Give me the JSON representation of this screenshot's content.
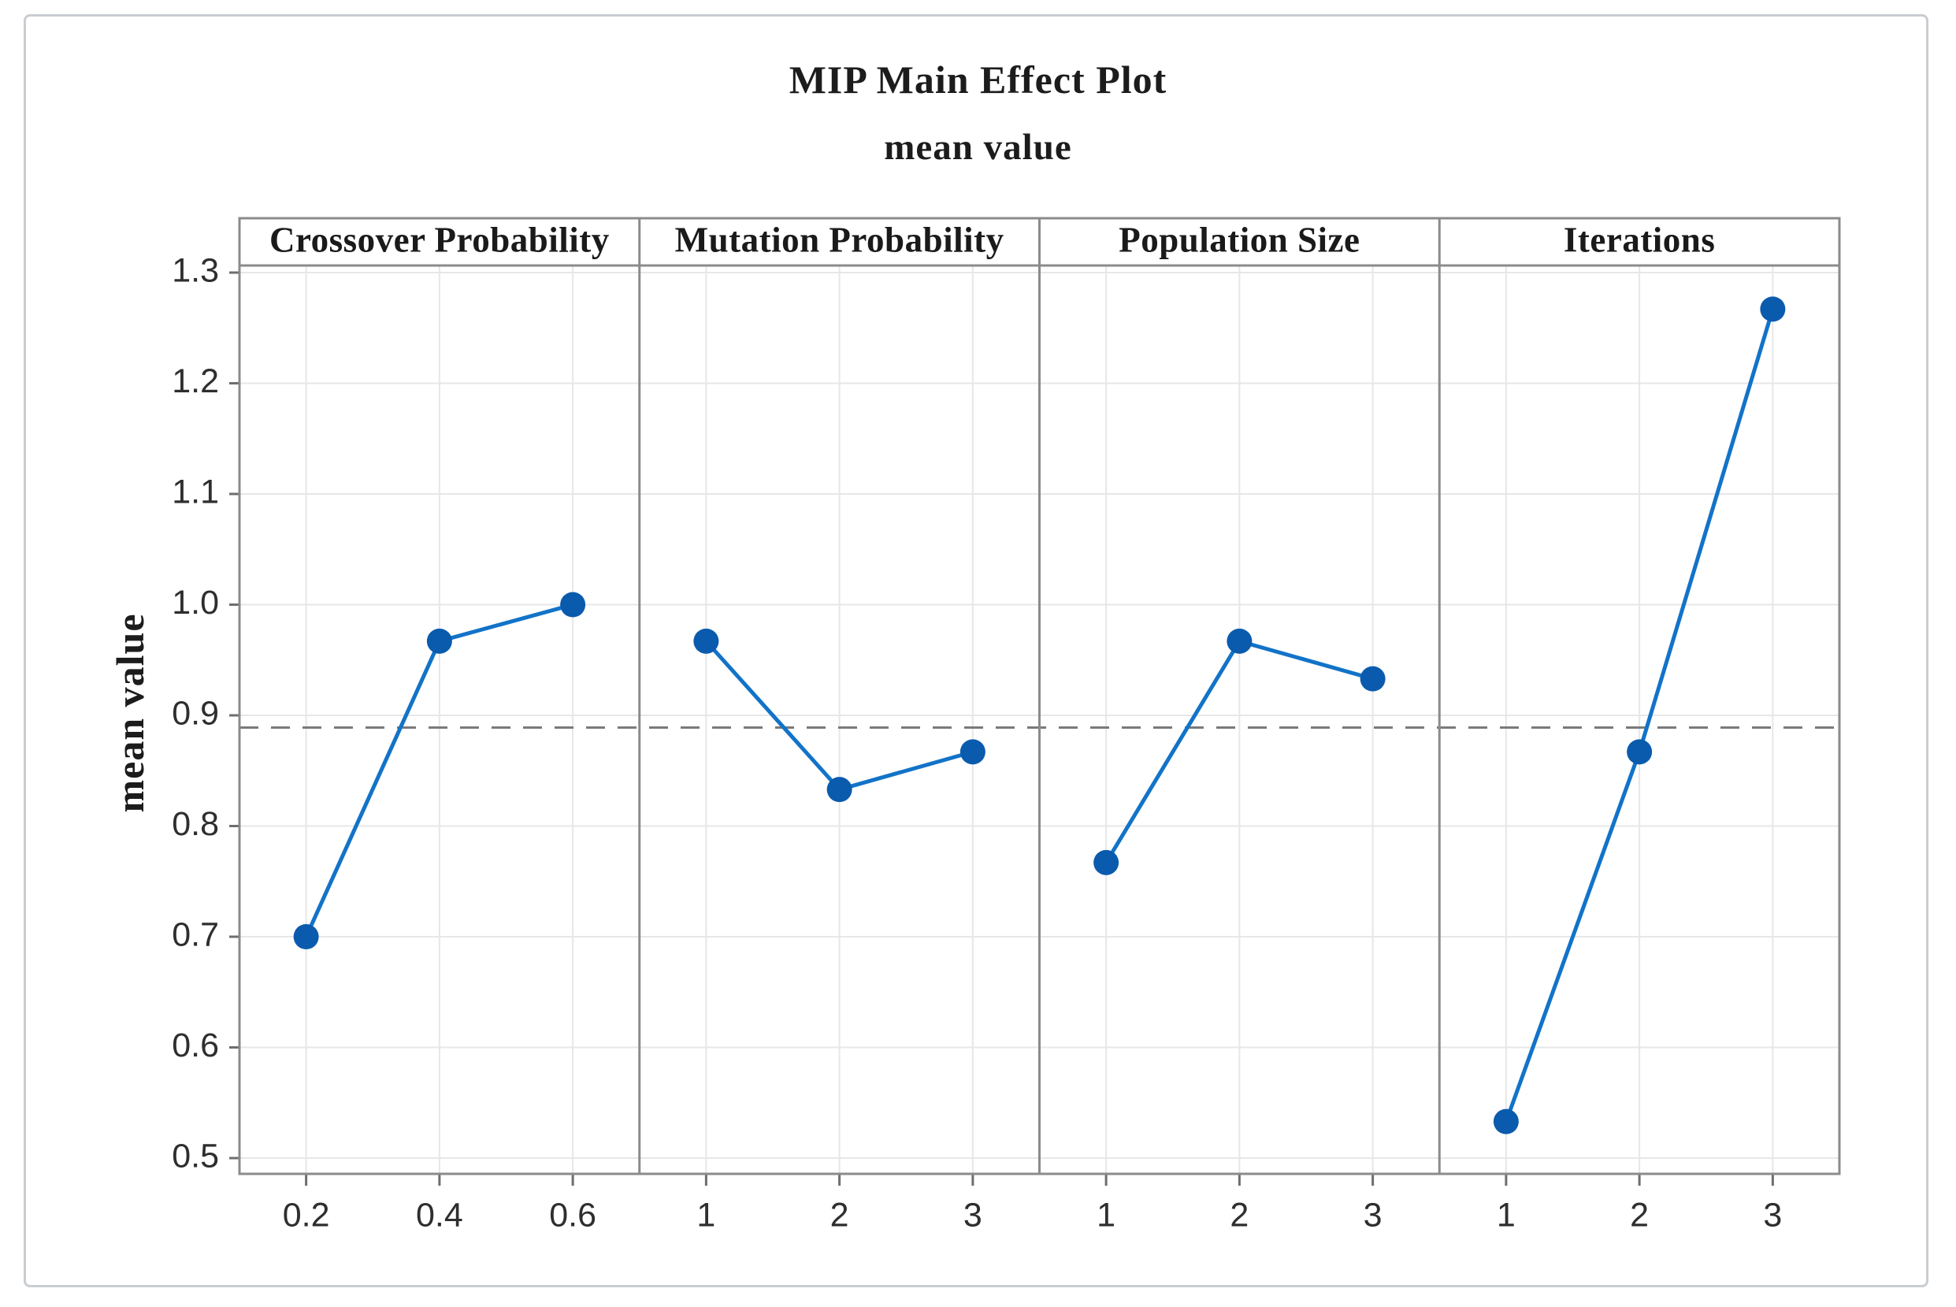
{
  "figure": {
    "title": "MIP Main Effect Plot",
    "subtitle": "mean value",
    "y_axis_title": "mean value"
  },
  "chart_data": {
    "type": "line",
    "title": "MIP Main Effect Plot",
    "subtitle": "mean value",
    "ylabel": "mean value",
    "ylim": [
      0.5,
      1.3
    ],
    "y_tick_labels": [
      "0.5",
      "0.6",
      "0.7",
      "0.8",
      "0.9",
      "1.0",
      "1.1",
      "1.2",
      "1.3"
    ],
    "y_tick_values": [
      0.5,
      0.6,
      0.7,
      0.8,
      0.9,
      1.0,
      1.1,
      1.2,
      1.3
    ],
    "grid": true,
    "legend": "none",
    "reference_line": {
      "value": 0.889,
      "style": "dashed"
    },
    "panels": [
      {
        "label": "Crossover Probability",
        "categories": [
          "0.2",
          "0.4",
          "0.6"
        ],
        "values": [
          0.7,
          0.967,
          1.0
        ]
      },
      {
        "label": "Mutation Probability",
        "categories": [
          "1",
          "2",
          "3"
        ],
        "values": [
          0.967,
          0.833,
          0.867
        ]
      },
      {
        "label": "Population Size",
        "categories": [
          "1",
          "2",
          "3"
        ],
        "values": [
          0.767,
          0.967,
          0.933
        ]
      },
      {
        "label": "Iterations",
        "categories": [
          "1",
          "2",
          "3"
        ],
        "values": [
          0.533,
          0.867,
          1.267
        ]
      }
    ],
    "colors": {
      "line": "#1273c8",
      "marker": "#0a5bad",
      "reference": "#7a7a7a",
      "grid": "#e7e7e7",
      "frame": "#8b8b8b",
      "tick": "#6e6e6e",
      "text": "#1c1c1c",
      "outer_border": "#c9cdd1"
    }
  }
}
